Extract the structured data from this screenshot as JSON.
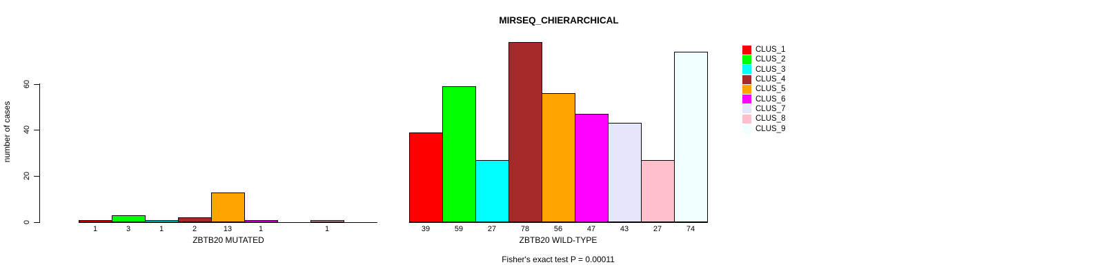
{
  "chart_data": {
    "type": "bar",
    "title": "MIRSEQ_CHIERARCHICAL",
    "ylabel": "number of cases",
    "yticks": [
      0,
      20,
      40,
      60
    ],
    "ylim": [
      0,
      78
    ],
    "grid": false,
    "legend_position": "right",
    "footer": "Fisher's exact test P = 0.00011",
    "legend": [
      {
        "name": "CLUS_1",
        "color": "#FF0000"
      },
      {
        "name": "CLUS_2",
        "color": "#00FF00"
      },
      {
        "name": "CLUS_3",
        "color": "#00FFFF"
      },
      {
        "name": "CLUS_4",
        "color": "#A52A2A"
      },
      {
        "name": "CLUS_5",
        "color": "#FFA500"
      },
      {
        "name": "CLUS_6",
        "color": "#FF00FF"
      },
      {
        "name": "CLUS_7",
        "color": "#E6E6FA"
      },
      {
        "name": "CLUS_8",
        "color": "#FFC0CB"
      },
      {
        "name": "CLUS_9",
        "color": "#F0FFFF"
      }
    ],
    "panels": [
      {
        "xlabel": "ZBTB20 MUTATED",
        "categories": [
          "CLUS_1",
          "CLUS_2",
          "CLUS_3",
          "CLUS_4",
          "CLUS_5",
          "CLUS_6",
          "CLUS_7",
          "CLUS_8",
          "CLUS_9"
        ],
        "values": [
          1,
          3,
          1,
          2,
          13,
          1,
          0,
          1,
          0
        ],
        "bar_labels": [
          "1",
          "3",
          "1",
          "2",
          "13",
          "1",
          "",
          "1",
          ""
        ]
      },
      {
        "xlabel": "ZBTB20 WILD-TYPE",
        "categories": [
          "CLUS_1",
          "CLUS_2",
          "CLUS_3",
          "CLUS_4",
          "CLUS_5",
          "CLUS_6",
          "CLUS_7",
          "CLUS_8",
          "CLUS_9"
        ],
        "values": [
          39,
          59,
          27,
          78,
          56,
          47,
          43,
          27,
          74
        ],
        "bar_labels": [
          "39",
          "59",
          "27",
          "78",
          "56",
          "47",
          "43",
          "27",
          "74"
        ]
      }
    ]
  }
}
